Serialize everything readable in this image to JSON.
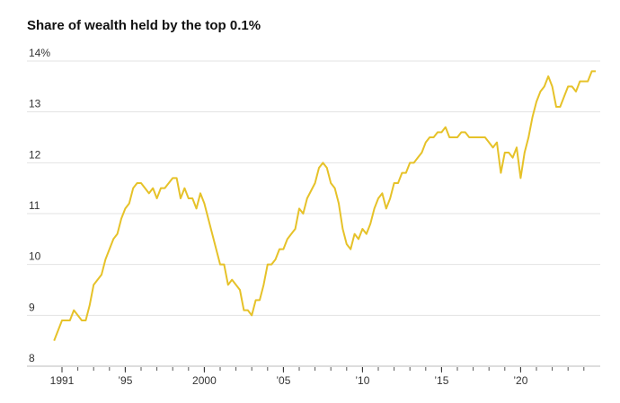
{
  "chart_data": {
    "type": "line",
    "title": "Share of wealth held by the top 0.1%",
    "x": [
      1990.5,
      1991.0,
      1991.5,
      1991.75,
      1992.25,
      1992.5,
      1992.75,
      1993.0,
      1993.5,
      1993.75,
      1994.25,
      1994.5,
      1994.75,
      1995.0,
      1995.25,
      1995.5,
      1995.75,
      1996.0,
      1996.25,
      1996.5,
      1996.75,
      1997.0,
      1997.25,
      1997.5,
      1997.75,
      1998.0,
      1998.25,
      1998.5,
      1998.75,
      1999.0,
      1999.25,
      1999.5,
      1999.75,
      2000.0,
      2000.25,
      2000.5,
      2000.75,
      2001.0,
      2001.25,
      2001.5,
      2001.75,
      2002.25,
      2002.5,
      2002.75,
      2003.0,
      2003.25,
      2003.5,
      2003.75,
      2004.0,
      2004.25,
      2004.5,
      2004.75,
      2005.0,
      2005.25,
      2005.5,
      2005.75,
      2006.0,
      2006.25,
      2006.5,
      2007.0,
      2007.25,
      2007.5,
      2007.75,
      2008.0,
      2008.25,
      2008.5,
      2008.75,
      2009.0,
      2009.25,
      2009.5,
      2009.75,
      2010.0,
      2010.25,
      2010.5,
      2010.75,
      2011.0,
      2011.25,
      2011.5,
      2011.75,
      2012.0,
      2012.25,
      2012.5,
      2012.75,
      2013.0,
      2013.25,
      2013.5,
      2013.75,
      2014.0,
      2014.25,
      2014.5,
      2014.75,
      2015.0,
      2015.25,
      2015.5,
      2015.75,
      2016.0,
      2016.25,
      2016.5,
      2016.75,
      2017.0,
      2017.25,
      2017.5,
      2017.75,
      2018.0,
      2018.25,
      2018.5,
      2018.75,
      2019.0,
      2019.25,
      2019.5,
      2019.75,
      2020.0,
      2020.25,
      2020.5,
      2020.75,
      2021.0,
      2021.25,
      2021.5,
      2021.75,
      2022.0,
      2022.25,
      2022.5,
      2022.75,
      2023.0,
      2023.25,
      2023.5,
      2023.75,
      2024.0,
      2024.25,
      2024.5,
      2024.75
    ],
    "series": [
      {
        "color": "#e6c229",
        "values": [
          8.5,
          8.9,
          8.9,
          9.1,
          8.9,
          8.9,
          9.2,
          9.6,
          9.8,
          10.1,
          10.5,
          10.6,
          10.9,
          11.1,
          11.2,
          11.5,
          11.6,
          11.6,
          11.5,
          11.4,
          11.5,
          11.3,
          11.5,
          11.5,
          11.6,
          11.7,
          11.7,
          11.3,
          11.5,
          11.3,
          11.3,
          11.1,
          11.4,
          11.2,
          10.9,
          10.6,
          10.3,
          10.0,
          10.0,
          9.6,
          9.7,
          9.5,
          9.1,
          9.1,
          9.0,
          9.3,
          9.3,
          9.6,
          10.0,
          10.0,
          10.1,
          10.3,
          10.3,
          10.5,
          10.6,
          10.7,
          11.1,
          11.0,
          11.3,
          11.6,
          11.9,
          12.0,
          11.9,
          11.6,
          11.5,
          11.2,
          10.7,
          10.4,
          10.3,
          10.6,
          10.5,
          10.7,
          10.6,
          10.8,
          11.1,
          11.3,
          11.4,
          11.1,
          11.3,
          11.6,
          11.6,
          11.8,
          11.8,
          12.0,
          12.0,
          12.1,
          12.2,
          12.4,
          12.5,
          12.5,
          12.6,
          12.6,
          12.7,
          12.5,
          12.5,
          12.5,
          12.6,
          12.6,
          12.5,
          12.5,
          12.5,
          12.5,
          12.5,
          12.4,
          12.3,
          12.4,
          11.8,
          12.2,
          12.2,
          12.1,
          12.3,
          11.7,
          12.2,
          12.5,
          12.9,
          13.2,
          13.4,
          13.5,
          13.7,
          13.5,
          13.1,
          13.1,
          13.3,
          13.5,
          13.5,
          13.4,
          13.6,
          13.6,
          13.6,
          13.8,
          13.8
        ]
      }
    ],
    "xlim": [
      1990.0,
      2025.0
    ],
    "xticks": [
      {
        "value": 1991,
        "label": "1991"
      },
      {
        "value": 1995,
        "label": "’95"
      },
      {
        "value": 2000,
        "label": "2000"
      },
      {
        "value": 2005,
        "label": "’05"
      },
      {
        "value": 2010,
        "label": "’10"
      },
      {
        "value": 2015,
        "label": "’15"
      },
      {
        "value": 2020,
        "label": "’20"
      }
    ],
    "xminor_ticks": [
      1991,
      1992,
      1993,
      1994,
      1995,
      1996,
      1997,
      1998,
      1999,
      2000,
      2001,
      2002,
      2003,
      2004,
      2005,
      2006,
      2007,
      2008,
      2009,
      2010,
      2011,
      2012,
      2013,
      2014,
      2015,
      2016,
      2017,
      2018,
      2019,
      2020,
      2021,
      2022,
      2023,
      2024
    ],
    "ylim": [
      8,
      14
    ],
    "yticks": [
      8,
      9,
      10,
      11,
      12,
      13,
      {
        "value": 14,
        "label": "14%"
      }
    ],
    "grid": true
  }
}
